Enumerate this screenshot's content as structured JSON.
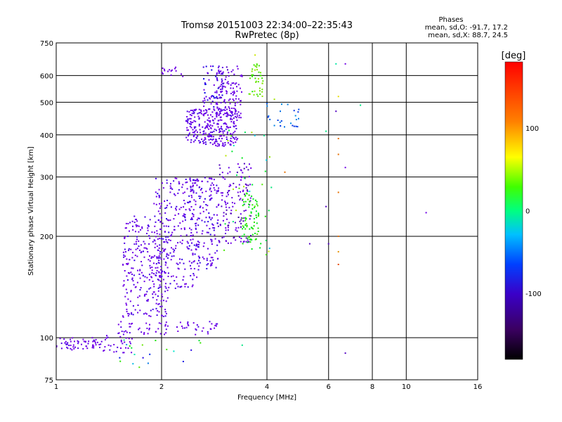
{
  "chart_data": {
    "type": "scatter",
    "title": "Tromsø 20151003 22:34:00–22:35:43",
    "subtitle": "RwPretec (8p)",
    "xlabel": "Frequency [MHz]",
    "ylabel": "Stationary phase Virtual Height [km]",
    "x_scale": "log",
    "y_scale": "log",
    "xlim": [
      1,
      16
    ],
    "ylim": [
      75,
      750
    ],
    "x_ticks": [
      1,
      2,
      4,
      6,
      8,
      10,
      16
    ],
    "y_ticks": [
      75,
      100,
      200,
      300,
      400,
      500,
      600,
      750
    ],
    "x_gridlines": [
      2,
      4,
      6,
      8,
      10
    ],
    "y_gridlines": [
      100,
      200,
      300,
      400,
      500,
      600
    ],
    "stats": {
      "heading": "Phases",
      "line1": "mean, sd,O: -91.7, 17.2",
      "line2": "mean, sd,X:  88.7, 24.5"
    },
    "colorbar": {
      "label": "[deg]",
      "ticks": [
        100,
        0,
        -100
      ],
      "range": [
        -180,
        180
      ]
    },
    "clusters": [
      {
        "x": [
          1.0,
          1.35
        ],
        "y": [
          92,
          100
        ],
        "n": 60,
        "phase": [
          -110,
          -90
        ]
      },
      {
        "x": [
          1.3,
          1.65
        ],
        "y": [
          90,
          102
        ],
        "n": 30,
        "phase": [
          -110,
          -90
        ]
      },
      {
        "x": [
          1.5,
          2.9
        ],
        "y": [
          102,
          112
        ],
        "n": 70,
        "phase": [
          -110,
          -90
        ]
      },
      {
        "x": [
          1.55,
          2.1
        ],
        "y": [
          115,
          230
        ],
        "n": 280,
        "phase": [
          -115,
          -85
        ]
      },
      {
        "x": [
          1.9,
          2.55
        ],
        "y": [
          140,
          300
        ],
        "n": 230,
        "phase": [
          -115,
          -80
        ]
      },
      {
        "x": [
          2.4,
          2.9
        ],
        "y": [
          160,
          300
        ],
        "n": 160,
        "phase": [
          -115,
          -80
        ]
      },
      {
        "x": [
          2.35,
          3.3
        ],
        "y": [
          370,
          480
        ],
        "n": 280,
        "phase": [
          -115,
          -85
        ]
      },
      {
        "x": [
          2.6,
          3.0
        ],
        "y": [
          480,
          640
        ],
        "n": 60,
        "phase": [
          -110,
          -70
        ]
      },
      {
        "x": [
          2.85,
          3.4
        ],
        "y": [
          440,
          640
        ],
        "n": 120,
        "phase": [
          -140,
          -100
        ]
      },
      {
        "x": [
          2.9,
          3.6
        ],
        "y": [
          190,
          330
        ],
        "n": 140,
        "phase": [
          -150,
          -100
        ]
      },
      {
        "x": [
          3.4,
          3.8
        ],
        "y": [
          190,
          270
        ],
        "n": 70,
        "phase": [
          40,
          80
        ]
      },
      {
        "x": [
          3.55,
          3.9
        ],
        "y": [
          520,
          660
        ],
        "n": 40,
        "phase": [
          60,
          100
        ]
      },
      {
        "x": [
          4.0,
          5.0
        ],
        "y": [
          420,
          500
        ],
        "n": 25,
        "phase": [
          -30,
          -60
        ]
      },
      {
        "x": [
          2.0,
          2.3
        ],
        "y": [
          590,
          640
        ],
        "n": 15,
        "phase": [
          -120,
          -100
        ]
      },
      {
        "x": [
          1.5,
          2.6
        ],
        "y": [
          80,
          99
        ],
        "n": 20,
        "phase": [
          -80,
          90
        ]
      },
      {
        "x": [
          3.0,
          4.2
        ],
        "y": [
          175,
          420
        ],
        "n": 40,
        "phase": [
          -20,
          110
        ]
      }
    ],
    "isolated_points": [
      {
        "x": 6.4,
        "y": 520,
        "phase": 120
      },
      {
        "x": 6.4,
        "y": 390,
        "phase": 150
      },
      {
        "x": 6.4,
        "y": 350,
        "phase": 150
      },
      {
        "x": 6.4,
        "y": 270,
        "phase": 150
      },
      {
        "x": 6.4,
        "y": 200,
        "phase": 150
      },
      {
        "x": 6.4,
        "y": 180,
        "phase": 140
      },
      {
        "x": 6.4,
        "y": 165,
        "phase": 160
      },
      {
        "x": 6.3,
        "y": 470,
        "phase": -140
      },
      {
        "x": 6.7,
        "y": 320,
        "phase": -110
      },
      {
        "x": 6.7,
        "y": 650,
        "phase": -110
      },
      {
        "x": 6.7,
        "y": 90,
        "phase": -140
      },
      {
        "x": 6.3,
        "y": 650,
        "phase": 10
      },
      {
        "x": 6.0,
        "y": 190,
        "phase": -140
      },
      {
        "x": 5.9,
        "y": 245,
        "phase": -140
      },
      {
        "x": 5.9,
        "y": 410,
        "phase": 20
      },
      {
        "x": 5.3,
        "y": 190,
        "phase": -140
      },
      {
        "x": 7.4,
        "y": 490,
        "phase": 20
      },
      {
        "x": 11.4,
        "y": 235,
        "phase": -100
      },
      {
        "x": 4.5,
        "y": 310,
        "phase": 150
      },
      {
        "x": 4.2,
        "y": 510,
        "phase": 100
      },
      {
        "x": 3.7,
        "y": 690,
        "phase": 110
      },
      {
        "x": 3.4,
        "y": 95,
        "phase": 20
      }
    ]
  }
}
